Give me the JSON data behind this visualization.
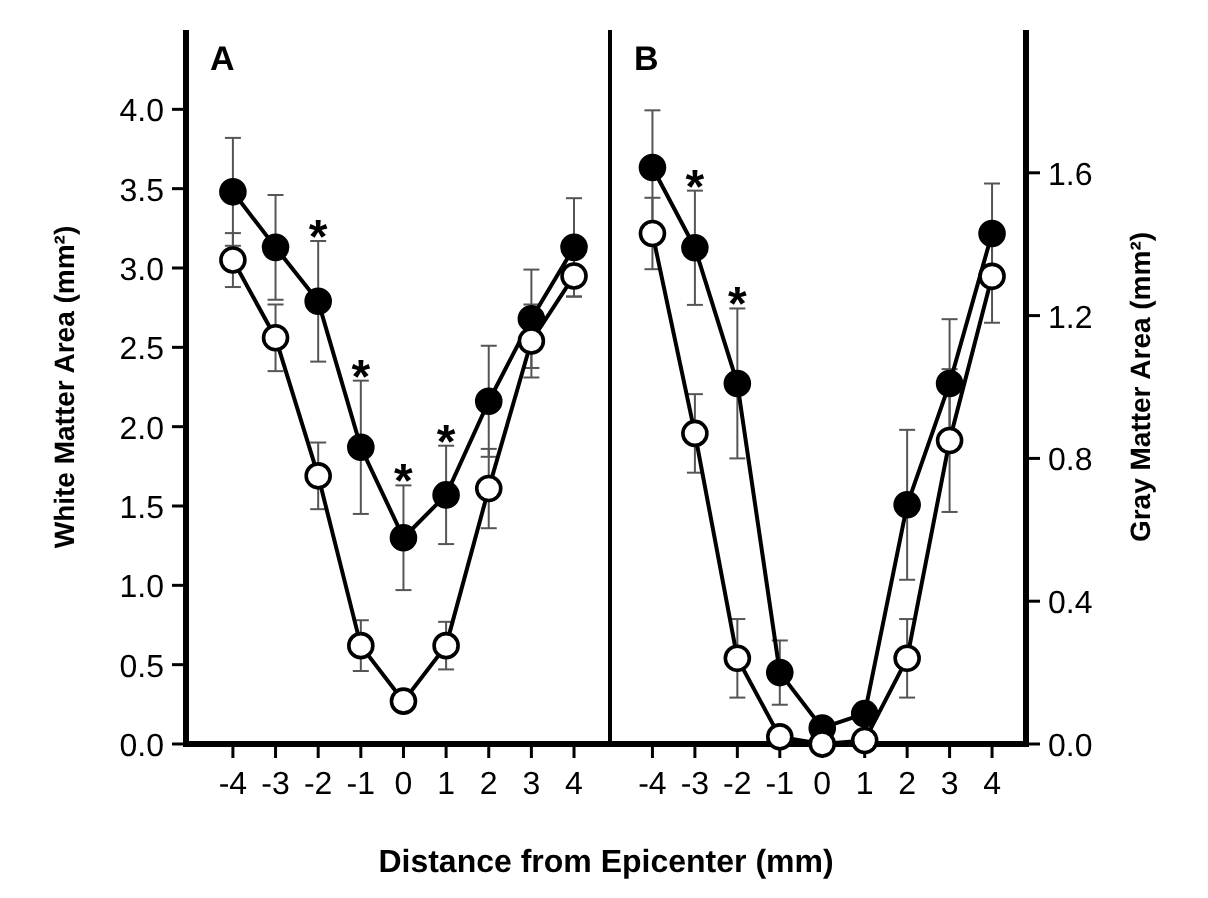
{
  "chart_data": [
    {
      "type": "line",
      "title": "A",
      "xlabel": "Distance from Epicenter (mm)",
      "ylabel": "White Matter Area (mm²)",
      "x": [
        -4,
        -3,
        -2,
        -1,
        0,
        1,
        2,
        3,
        4
      ],
      "xlim": [
        -5.1,
        4.75
      ],
      "xticks": [
        -4,
        -3,
        -2,
        -1,
        0,
        1,
        2,
        3,
        4
      ],
      "ylim": [
        0,
        4.5
      ],
      "yticks": [
        {
          "value": 0,
          "label": "0.0"
        },
        0.5,
        {
          "value": 1,
          "label": "1.0"
        },
        1.5,
        {
          "value": 2,
          "label": "2.0"
        },
        2.5,
        {
          "value": 3,
          "label": "3.0"
        },
        3.5,
        {
          "value": 4,
          "label": "4.0"
        }
      ],
      "marker": "circle",
      "grid": false,
      "series": [
        {
          "color": "#000000",
          "values": [
            3.48,
            3.13,
            2.79,
            1.87,
            1.3,
            1.57,
            2.16,
            2.68,
            3.13
          ],
          "errors": [
            0.34,
            0.33,
            0.38,
            0.42,
            0.33,
            0.31,
            0.35,
            0.31,
            0.31
          ]
        },
        {
          "color": "#ffffff",
          "values": [
            3.05,
            2.56,
            1.69,
            0.62,
            0.27,
            0.62,
            1.61,
            2.54,
            2.95
          ],
          "errors": [
            0.17,
            0.21,
            0.21,
            0.16,
            0.05,
            0.15,
            0.25,
            0.23,
            0.13
          ]
        }
      ],
      "annotations": [
        {
          "text": "*",
          "x": -2,
          "y": 2.79
        },
        {
          "text": "*",
          "x": -1,
          "y": 1.87
        },
        {
          "text": "*",
          "x": 0,
          "y": 1.3
        },
        {
          "text": "*",
          "x": 1,
          "y": 1.57
        }
      ]
    },
    {
      "type": "line",
      "title": "B",
      "ylabel": "Gray Matter Area (mm²)",
      "x": [
        -4,
        -3,
        -2,
        -1,
        0,
        1,
        2,
        3,
        4
      ],
      "xlim": [
        -5,
        4.8
      ],
      "xticks": [
        -4,
        -3,
        -2,
        -1,
        0,
        1,
        2,
        3,
        4
      ],
      "ylim": [
        0,
        2
      ],
      "yticks": [
        {
          "value": 0,
          "label": "0.0"
        },
        0.4,
        0.8,
        1.2,
        1.6
      ],
      "marker": "circle",
      "grid": false,
      "series": [
        {
          "color": "#000000",
          "values": [
            1.615,
            1.39,
            1.01,
            0.2,
            0.045,
            0.085,
            0.67,
            1.01,
            1.43
          ],
          "errors": [
            0.16,
            0.16,
            0.21,
            0.09,
            null,
            0.03,
            0.21,
            0.18,
            0.14
          ]
        },
        {
          "color": "#ffffff",
          "values": [
            1.43,
            0.87,
            0.24,
            0.02,
            0,
            0.01,
            0.24,
            0.85,
            1.31
          ],
          "errors": [
            0.1,
            0.11,
            0.11,
            null,
            null,
            null,
            0.11,
            0.2,
            0.13
          ]
        }
      ],
      "annotations": [
        {
          "text": "*",
          "x": -3,
          "y": 1.39
        },
        {
          "text": "*",
          "x": -2,
          "y": 1.01
        }
      ]
    }
  ]
}
